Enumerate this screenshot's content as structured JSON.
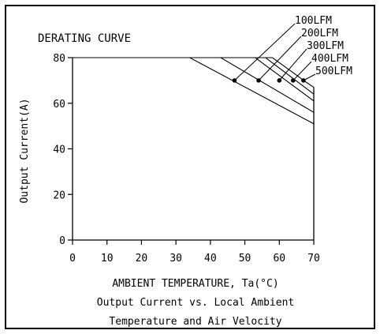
{
  "chart_data": {
    "type": "line",
    "title": "DERATING CURVE",
    "xlabel": "AMBIENT TEMPERATURE, Ta(°C)",
    "ylabel": "Output Current(A)",
    "caption_lines": [
      "Output Current vs. Local Ambient",
      "Temperature and Air Velocity"
    ],
    "xlim": [
      0,
      70
    ],
    "ylim": [
      0,
      80
    ],
    "x_ticks": [
      0,
      10,
      20,
      30,
      40,
      50,
      60,
      70
    ],
    "y_ticks": [
      0,
      20,
      40,
      60,
      80
    ],
    "grid": false,
    "legend_position": "top-right",
    "series": [
      {
        "name": "100LFM",
        "x": [
          0,
          34,
          70
        ],
        "y": [
          80,
          80,
          51
        ],
        "marker": {
          "x": 47,
          "y": 70
        }
      },
      {
        "name": "200LFM",
        "x": [
          0,
          43,
          70
        ],
        "y": [
          80,
          80,
          56
        ],
        "marker": {
          "x": 54,
          "y": 70
        }
      },
      {
        "name": "300LFM",
        "x": [
          0,
          53,
          70
        ],
        "y": [
          80,
          80,
          61
        ],
        "marker": {
          "x": 60,
          "y": 70
        }
      },
      {
        "name": "400LFM",
        "x": [
          0,
          56,
          70
        ],
        "y": [
          80,
          80,
          64
        ],
        "marker": {
          "x": 64,
          "y": 70
        }
      },
      {
        "name": "500LFM",
        "x": [
          0,
          58,
          68,
          70
        ],
        "y": [
          80,
          80,
          69,
          67
        ],
        "marker": {
          "x": 67,
          "y": 70
        }
      }
    ]
  }
}
